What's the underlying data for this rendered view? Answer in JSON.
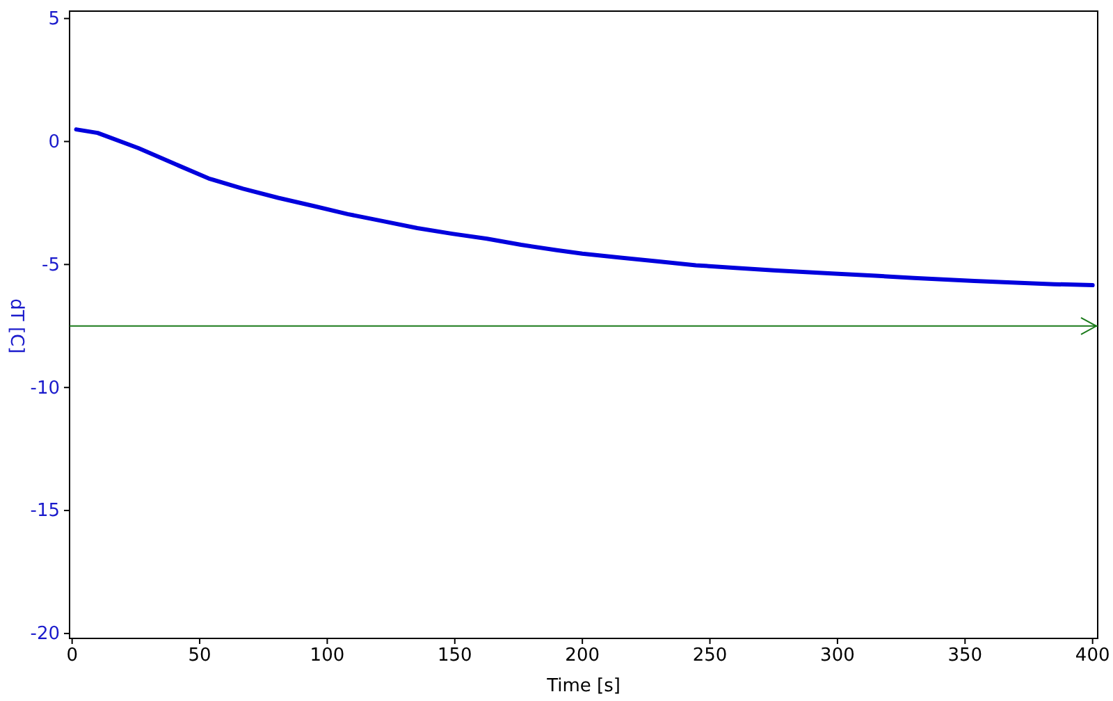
{
  "chart_data": {
    "type": "line",
    "xlabel": "Time [s]",
    "ylabel": "dT [C]",
    "xlim": [
      -1,
      402
    ],
    "ylim": [
      -20.2,
      5.3
    ],
    "xticks": [
      0,
      50,
      100,
      150,
      200,
      250,
      300,
      350,
      400
    ],
    "yticks": [
      5,
      0,
      -5,
      -10,
      -15,
      -20
    ],
    "grid": false,
    "marker": "none",
    "line_style": "solid",
    "series": [
      {
        "color": "#0000dd",
        "x": [
          1.6,
          10,
          26,
          40,
          53.5,
          67,
          80.8,
          95,
          108,
          122,
          135.3,
          149,
          162.6,
          176,
          190,
          200,
          215,
          230,
          244.5,
          260,
          275,
          299,
          315,
          330,
          353.6,
          370,
          385,
          400
        ],
        "values": [
          0.49,
          0.35,
          -0.27,
          -0.9,
          -1.5,
          -1.92,
          -2.29,
          -2.63,
          -2.95,
          -3.24,
          -3.52,
          -3.75,
          -3.95,
          -4.2,
          -4.42,
          -4.56,
          -4.72,
          -4.88,
          -5.03,
          -5.14,
          -5.24,
          -5.37,
          -5.46,
          -5.55,
          -5.67,
          -5.74,
          -5.8,
          -5.84
        ]
      }
    ],
    "ref_lines": [
      {
        "axis": "y",
        "value": -7.5,
        "color": "#1a7a1a",
        "line_style": "solid"
      }
    ]
  }
}
